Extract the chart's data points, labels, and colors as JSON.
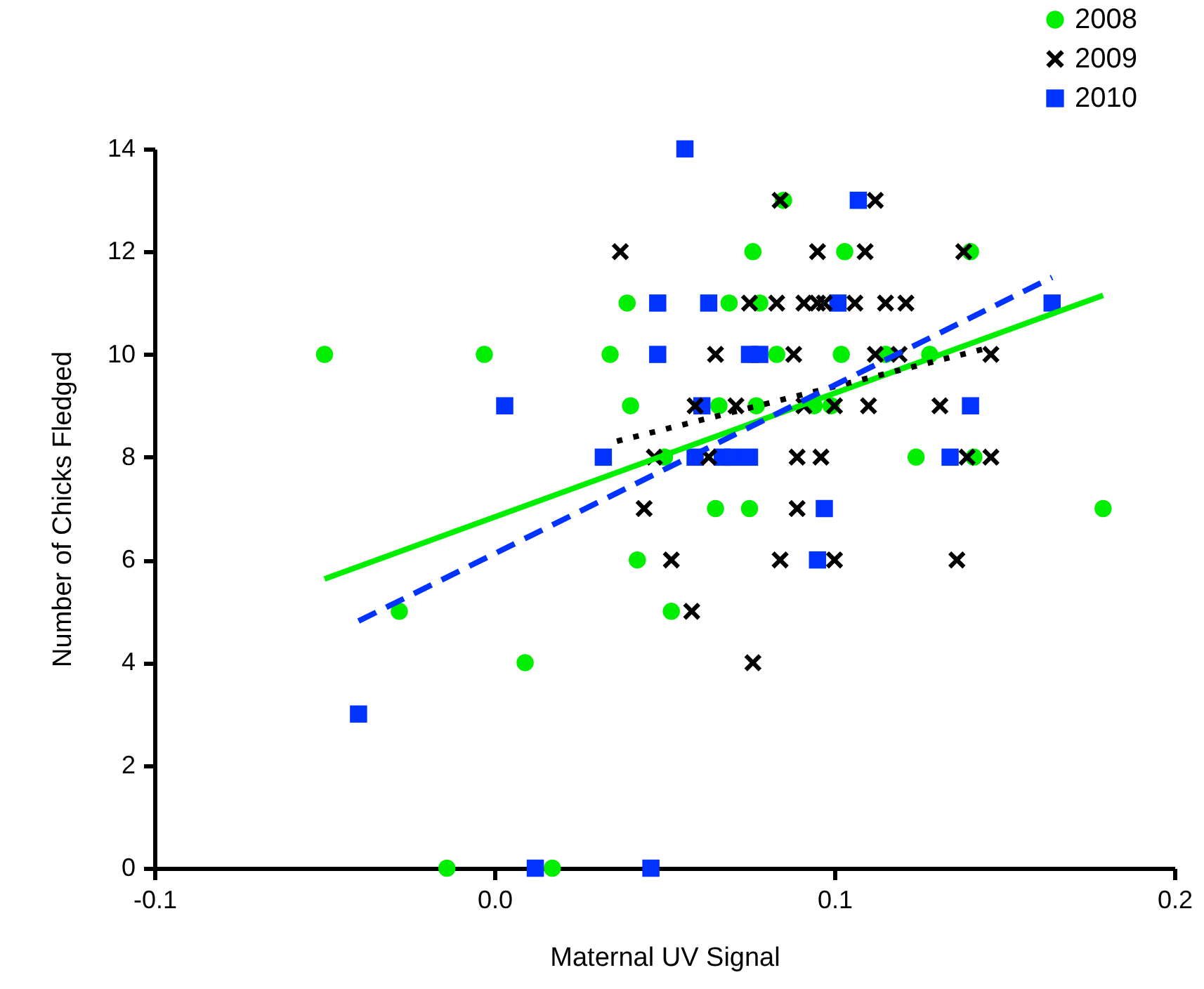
{
  "chart_data": {
    "type": "scatter",
    "xlabel": "Maternal UV Signal",
    "ylabel": "Number of Chicks Fledged",
    "xlim": [
      -0.1,
      0.2
    ],
    "ylim": [
      0,
      14
    ],
    "xticks": [
      -0.1,
      {
        "value": 0,
        "label": "0.0"
      },
      0.1,
      0.2
    ],
    "yticks": [
      0,
      2,
      4,
      6,
      8,
      10,
      12,
      14
    ],
    "grid": false,
    "legend": "top right",
    "series": [
      {
        "name": "2008",
        "type": "scatter",
        "marker": "circle",
        "color": "#00ee00",
        "x": [
          -0.05,
          -0.003,
          -0.028,
          0.009,
          -0.014,
          0.017,
          0.034,
          0.039,
          0.04,
          0.042,
          0.052,
          0.05,
          0.065,
          0.075,
          0.066,
          0.069,
          0.076,
          0.078,
          0.077,
          0.083,
          0.085,
          0.094,
          0.099,
          0.103,
          0.102,
          0.115,
          0.128,
          0.14,
          0.124,
          0.141,
          0.179
        ],
        "values": [
          10,
          10,
          5,
          4,
          0,
          0,
          10,
          11,
          9,
          6,
          5,
          8,
          7,
          7,
          9,
          11,
          12,
          11,
          9,
          10,
          13,
          9,
          9,
          12,
          10,
          10,
          10,
          12,
          8,
          8,
          7
        ]
      },
      {
        "name": "2009",
        "type": "scatter",
        "marker": "cross",
        "color": "#000000",
        "x": [
          0.037,
          0.084,
          0.095,
          0.075,
          0.083,
          0.091,
          0.095,
          0.097,
          0.065,
          0.088,
          0.059,
          0.071,
          0.091,
          0.047,
          0.063,
          0.089,
          0.096,
          0.112,
          0.109,
          0.138,
          0.106,
          0.115,
          0.121,
          0.112,
          0.119,
          0.146,
          0.1,
          0.11,
          0.131,
          0.139,
          0.146,
          0.044,
          0.089,
          0.052,
          0.084,
          0.1,
          0.136,
          0.058,
          0.076
        ],
        "values": [
          12,
          13,
          12,
          11,
          11,
          11,
          11,
          11,
          10,
          10,
          9,
          9,
          9,
          8,
          8,
          8,
          8,
          13,
          12,
          12,
          11,
          11,
          11,
          10,
          10,
          10,
          9,
          9,
          9,
          8,
          8,
          7,
          7,
          6,
          6,
          6,
          6,
          5,
          4
        ]
      },
      {
        "name": "2010",
        "type": "scatter",
        "marker": "square",
        "color": "#0033ff",
        "x": [
          0.056,
          0.048,
          0.063,
          0.101,
          0.048,
          0.075,
          0.078,
          0.061,
          0.032,
          0.059,
          0.067,
          0.07,
          0.075,
          0.107,
          0.164,
          0.14,
          0.134,
          0.097,
          0.095,
          0.003,
          -0.04,
          0.012,
          0.046
        ],
        "values": [
          14,
          11,
          11,
          11,
          10,
          10,
          10,
          9,
          8,
          8,
          8,
          8,
          8,
          13,
          11,
          9,
          8,
          7,
          6,
          9,
          3,
          0,
          0
        ]
      },
      {
        "type": "line",
        "line_style": "solid",
        "color": "#00ee00",
        "x": [
          -0.05,
          0.179
        ],
        "values": [
          5.63,
          11.15
        ]
      },
      {
        "type": "line",
        "line_style": "dotted",
        "color": "#000000",
        "x": [
          0.036,
          0.146
        ],
        "values": [
          8.31,
          10.14
        ]
      },
      {
        "type": "line",
        "line_style": "dashed",
        "color": "#0033ff",
        "x": [
          -0.04,
          0.164
        ],
        "values": [
          4.81,
          11.5
        ]
      }
    ]
  }
}
